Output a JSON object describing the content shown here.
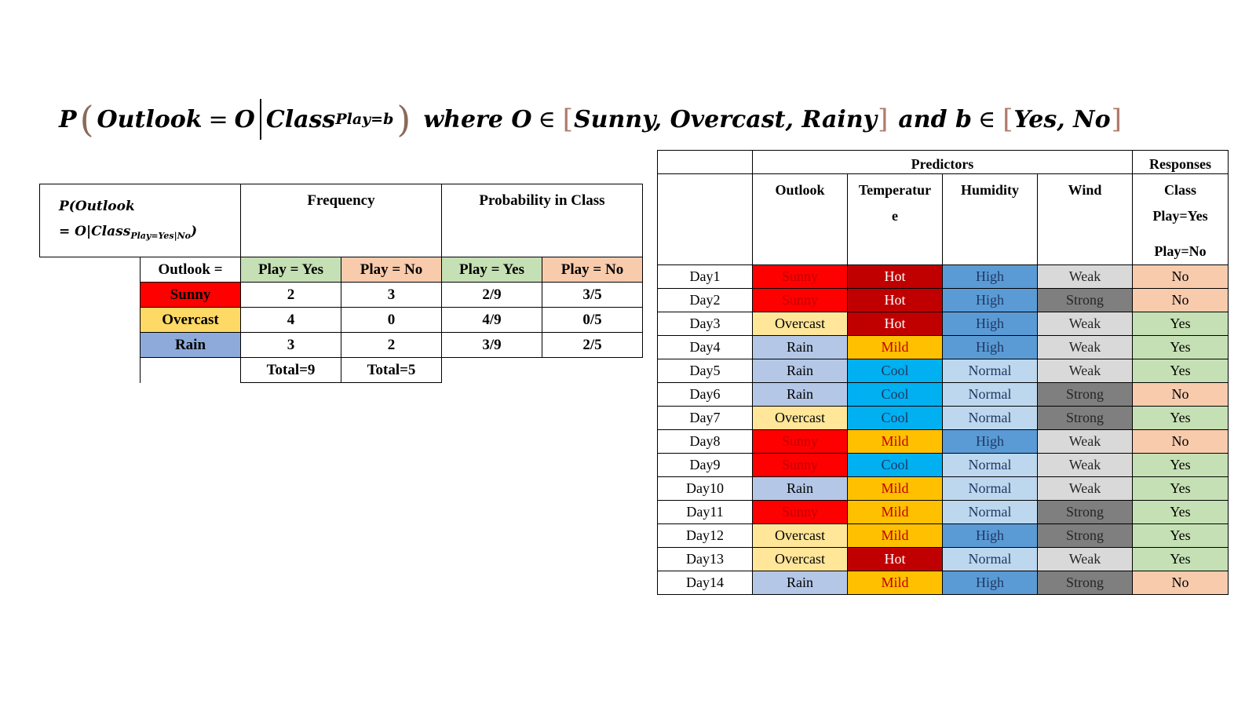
{
  "formula": {
    "p": "P",
    "outlook": "Outlook",
    "eq": "=",
    "o": "O",
    "class": "Class",
    "class_sub": "Play=b",
    "where": "where O",
    "in1": "∈",
    "set1": "Sunny, Overcast, Rainy",
    "and_b": "and b",
    "in2": "∈",
    "set2": "Yes, No"
  },
  "left_table": {
    "p_label_line1": "P(Outlook",
    "p_label_line2_pre": "= O|Class",
    "p_label_line2_sub": "Play=Yes|No",
    "p_label_line2_post": ")",
    "frequency_header": "Frequency",
    "probability_header": "Probability in Class",
    "outlook_label": "Outlook =",
    "col_labels": [
      "Play = Yes",
      "Play = No",
      "Play = Yes",
      "Play = No"
    ],
    "rows": [
      {
        "label": "Sunny",
        "color": "#ff0000",
        "cells": [
          "2",
          "3",
          "2/9",
          "3/5"
        ]
      },
      {
        "label": "Overcast",
        "color": "#ffd966",
        "cells": [
          "4",
          "0",
          "4/9",
          "0/5"
        ]
      },
      {
        "label": "Rain",
        "color": "#8eaadb",
        "cells": [
          "3",
          "2",
          "3/9",
          "2/5"
        ]
      }
    ],
    "totals": [
      "Total=9",
      "Total=5"
    ],
    "colors": {
      "yes": "#c5e0b4",
      "no": "#f8cbad"
    }
  },
  "right_table": {
    "predictors_header": "Predictors",
    "responses_header": "Responses",
    "col_outlook": "Outlook",
    "col_temperature_a": "Temperatur",
    "col_temperature_b": "e",
    "col_humidity": "Humidity",
    "col_wind": "Wind",
    "col_class_a": "Class",
    "col_class_b": "Play=Yes",
    "col_class_c": "Play=No",
    "colors": {
      "Sunny": {
        "bg": "#ff0000",
        "fg": "#c00000"
      },
      "Overcast": {
        "bg": "#ffe699",
        "fg": "#000000"
      },
      "Rain": {
        "bg": "#b4c7e7",
        "fg": "#000000"
      },
      "Hot": {
        "bg": "#c00000",
        "fg": "#ffffff"
      },
      "Mild": {
        "bg": "#ffc000",
        "fg": "#c00000"
      },
      "Cool": {
        "bg": "#00b0f0",
        "fg": "#1f3864"
      },
      "High": {
        "bg": "#5b9bd5",
        "fg": "#1f3864"
      },
      "Normal": {
        "bg": "#bdd7ee",
        "fg": "#1f3864"
      },
      "Weak": {
        "bg": "#d9d9d9",
        "fg": "#262626"
      },
      "Strong": {
        "bg": "#7f7f7f",
        "fg": "#262626"
      },
      "Yes": {
        "bg": "#c5e0b4",
        "fg": "#000000"
      },
      "No": {
        "bg": "#f8cbad",
        "fg": "#000000"
      }
    },
    "rows": [
      [
        "Day1",
        "Sunny",
        "Hot",
        "High",
        "Weak",
        "No"
      ],
      [
        "Day2",
        "Sunny",
        "Hot",
        "High",
        "Strong",
        "No"
      ],
      [
        "Day3",
        "Overcast",
        "Hot",
        "High",
        "Weak",
        "Yes"
      ],
      [
        "Day4",
        "Rain",
        "Mild",
        "High",
        "Weak",
        "Yes"
      ],
      [
        "Day5",
        "Rain",
        "Cool",
        "Normal",
        "Weak",
        "Yes"
      ],
      [
        "Day6",
        "Rain",
        "Cool",
        "Normal",
        "Strong",
        "No"
      ],
      [
        "Day7",
        "Overcast",
        "Cool",
        "Normal",
        "Strong",
        "Yes"
      ],
      [
        "Day8",
        "Sunny",
        "Mild",
        "High",
        "Weak",
        "No"
      ],
      [
        "Day9",
        "Sunny",
        "Cool",
        "Normal",
        "Weak",
        "Yes"
      ],
      [
        "Day10",
        "Rain",
        "Mild",
        "Normal",
        "Weak",
        "Yes"
      ],
      [
        "Day11",
        "Sunny",
        "Mild",
        "Normal",
        "Strong",
        "Yes"
      ],
      [
        "Day12",
        "Overcast",
        "Mild",
        "High",
        "Strong",
        "Yes"
      ],
      [
        "Day13",
        "Overcast",
        "Hot",
        "Normal",
        "Weak",
        "Yes"
      ],
      [
        "Day14",
        "Rain",
        "Mild",
        "High",
        "Strong",
        "No"
      ]
    ]
  }
}
